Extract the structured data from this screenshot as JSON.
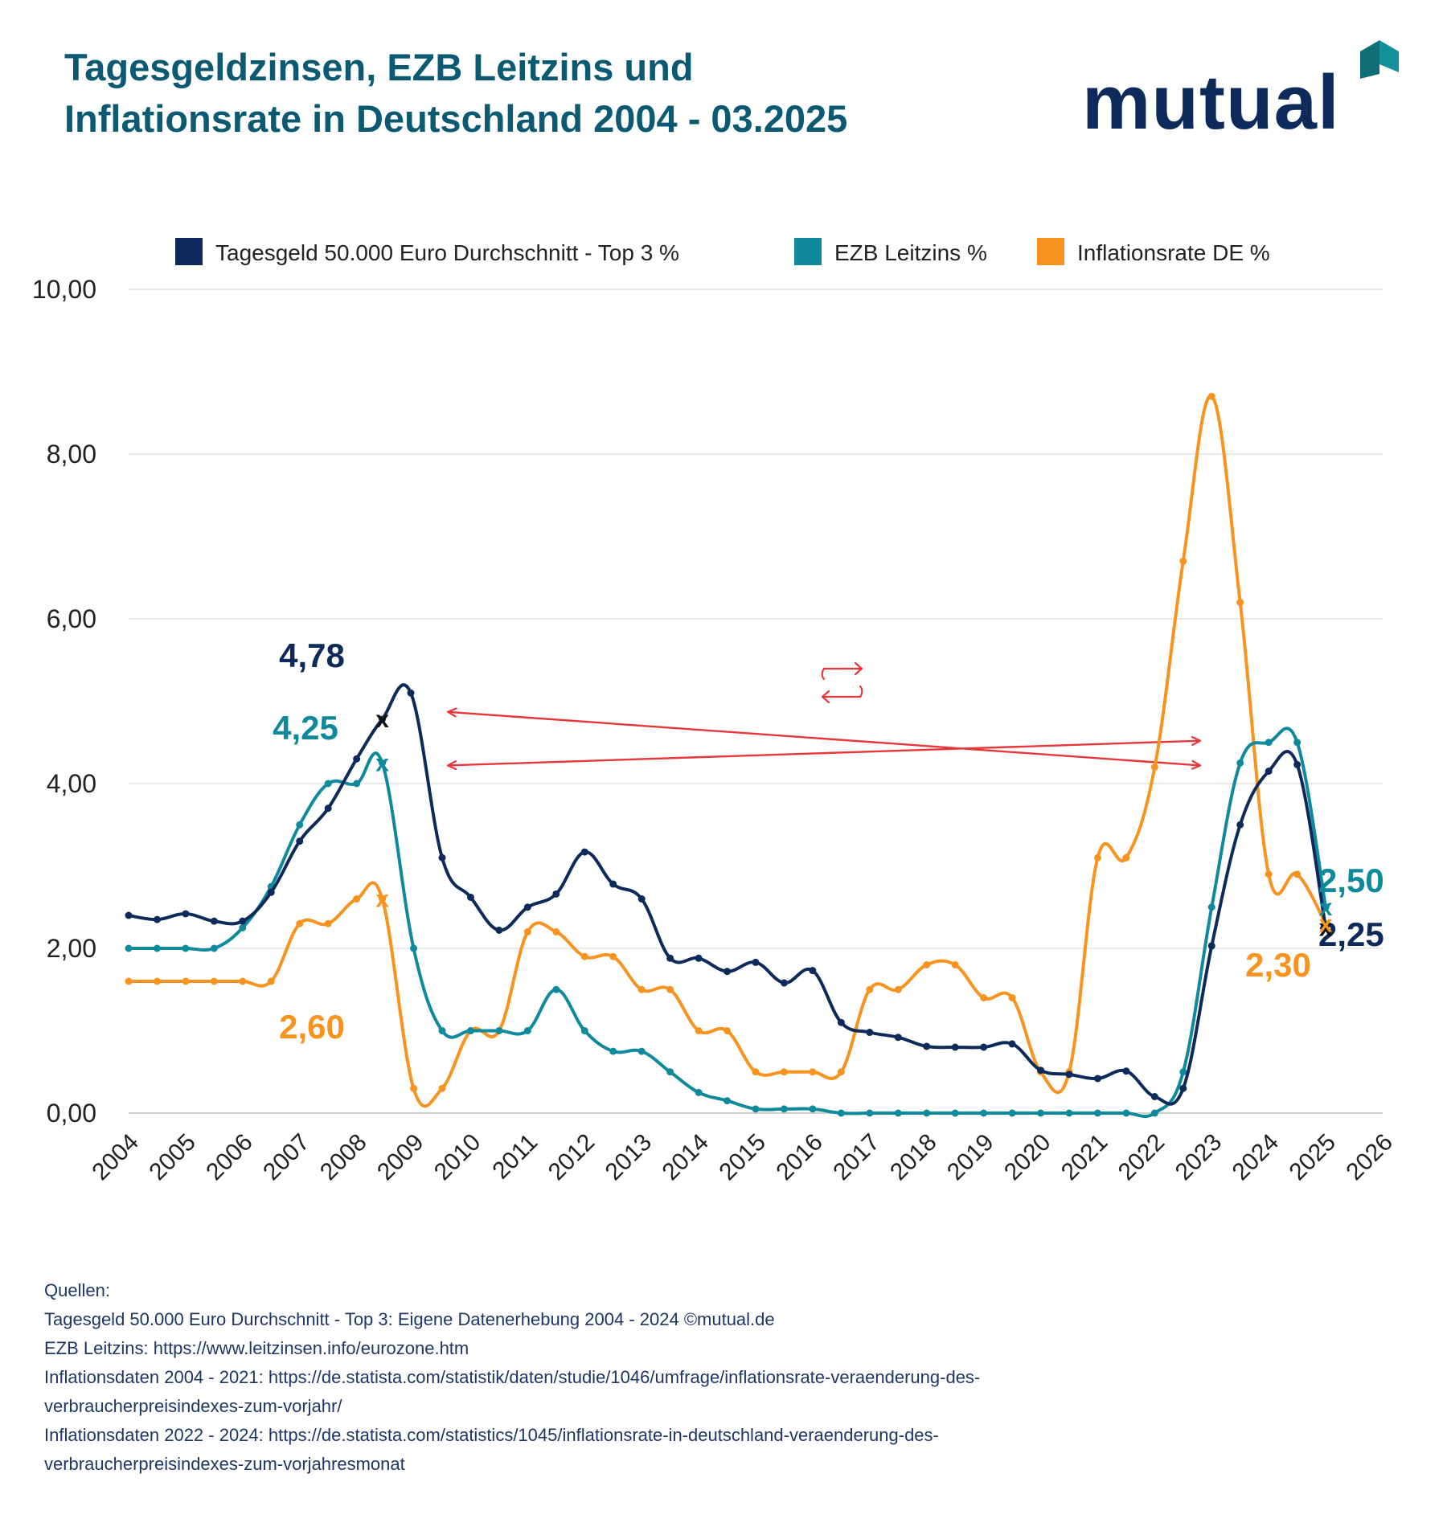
{
  "header": {
    "title_line1": "Tagesgeldzinsen, EZB Leitzins und",
    "title_line2": "Inflationsrate in Deutschland 2004 - 03.2025"
  },
  "logo": {
    "text": "mutual",
    "icon": "roof-icon"
  },
  "colors": {
    "tagesgeld": "#0d2a5a",
    "ezb": "#0f8a9c",
    "inflation": "#f7931e",
    "arrow": "#e8373a",
    "grid": "#e3e3e3"
  },
  "chart_data": {
    "type": "line",
    "title": "Tagesgeldzinsen, EZB Leitzins und Inflationsrate in Deutschland 2004 - 03.2025",
    "ylim": [
      0,
      10
    ],
    "xlim": [
      2004,
      2026
    ],
    "y_ticks": [
      "0,00",
      "2,00",
      "4,00",
      "6,00",
      "8,00",
      "10,00"
    ],
    "x_ticks": [
      "2004",
      "2005",
      "2006",
      "2007",
      "2008",
      "2009",
      "2010",
      "2011",
      "2012",
      "2013",
      "2014",
      "2015",
      "2016",
      "2017",
      "2018",
      "2019",
      "2020",
      "2021",
      "2022",
      "2023",
      "2024",
      "2025",
      "2026"
    ],
    "grid": true,
    "legend_position": "top",
    "series": [
      {
        "name": "Tagesgeld 50.000 Euro Durchschnitt - Top 3 %",
        "color": "#0d2a5a",
        "points": [
          [
            2004,
            2.4
          ],
          [
            2004.5,
            2.35
          ],
          [
            2005,
            2.42
          ],
          [
            2005.5,
            2.33
          ],
          [
            2006,
            2.33
          ],
          [
            2006.5,
            2.68
          ],
          [
            2007,
            3.3
          ],
          [
            2007.5,
            3.7
          ],
          [
            2008,
            4.3
          ],
          [
            2008.45,
            4.78
          ],
          [
            2008.95,
            5.1
          ],
          [
            2009.5,
            3.1
          ],
          [
            2010,
            2.62
          ],
          [
            2010.5,
            2.22
          ],
          [
            2011,
            2.5
          ],
          [
            2011.5,
            2.66
          ],
          [
            2012,
            3.17
          ],
          [
            2012.5,
            2.78
          ],
          [
            2013,
            2.6
          ],
          [
            2013.5,
            1.88
          ],
          [
            2014,
            1.88
          ],
          [
            2014.5,
            1.72
          ],
          [
            2015,
            1.83
          ],
          [
            2015.5,
            1.58
          ],
          [
            2016,
            1.73
          ],
          [
            2016.5,
            1.1
          ],
          [
            2017,
            0.98
          ],
          [
            2017.5,
            0.92
          ],
          [
            2018,
            0.81
          ],
          [
            2018.5,
            0.8
          ],
          [
            2019,
            0.8
          ],
          [
            2019.5,
            0.84
          ],
          [
            2020,
            0.52
          ],
          [
            2020.5,
            0.47
          ],
          [
            2021,
            0.42
          ],
          [
            2021.5,
            0.51
          ],
          [
            2022,
            0.2
          ],
          [
            2022.5,
            0.3
          ],
          [
            2023,
            2.03
          ],
          [
            2023.5,
            3.5
          ],
          [
            2024,
            4.15
          ],
          [
            2024.5,
            4.23
          ],
          [
            2025,
            2.25
          ]
        ],
        "end_marker": [
          2025,
          2.25
        ],
        "annotations": [
          {
            "x": 2008.45,
            "y": 4.78,
            "label": "4,78"
          },
          {
            "x": 2025,
            "y": 2.25,
            "label": "2,25"
          }
        ]
      },
      {
        "name": "EZB Leitzins %",
        "color": "#0f8a9c",
        "points": [
          [
            2004,
            2.0
          ],
          [
            2004.5,
            2.0
          ],
          [
            2005,
            2.0
          ],
          [
            2005.5,
            2.0
          ],
          [
            2006,
            2.25
          ],
          [
            2006.5,
            2.75
          ],
          [
            2007,
            3.5
          ],
          [
            2007.5,
            4.0
          ],
          [
            2008,
            4.0
          ],
          [
            2008.45,
            4.25
          ],
          [
            2009,
            2.0
          ],
          [
            2009.5,
            1.0
          ],
          [
            2010,
            1.0
          ],
          [
            2010.5,
            1.0
          ],
          [
            2011,
            1.0
          ],
          [
            2011.5,
            1.5
          ],
          [
            2012,
            1.0
          ],
          [
            2012.5,
            0.75
          ],
          [
            2013,
            0.75
          ],
          [
            2013.5,
            0.5
          ],
          [
            2014,
            0.25
          ],
          [
            2014.5,
            0.15
          ],
          [
            2015,
            0.05
          ],
          [
            2015.5,
            0.05
          ],
          [
            2016,
            0.05
          ],
          [
            2016.5,
            0.0
          ],
          [
            2017,
            0.0
          ],
          [
            2017.5,
            0.0
          ],
          [
            2018,
            0.0
          ],
          [
            2018.5,
            0.0
          ],
          [
            2019,
            0.0
          ],
          [
            2019.5,
            0.0
          ],
          [
            2020,
            0.0
          ],
          [
            2020.5,
            0.0
          ],
          [
            2021,
            0.0
          ],
          [
            2021.5,
            0.0
          ],
          [
            2022,
            0.0
          ],
          [
            2022.5,
            0.5
          ],
          [
            2023,
            2.5
          ],
          [
            2023.5,
            4.25
          ],
          [
            2024,
            4.5
          ],
          [
            2024.5,
            4.5
          ],
          [
            2025,
            2.5
          ]
        ],
        "end_marker": [
          2025,
          2.5
        ],
        "annotations": [
          {
            "x": 2008.45,
            "y": 4.25,
            "label": "4,25"
          },
          {
            "x": 2025,
            "y": 2.5,
            "label": "2,50"
          }
        ]
      },
      {
        "name": "Inflationsrate DE %",
        "color": "#f7931e",
        "points": [
          [
            2004,
            1.6
          ],
          [
            2004.5,
            1.6
          ],
          [
            2005,
            1.6
          ],
          [
            2005.5,
            1.6
          ],
          [
            2006,
            1.6
          ],
          [
            2006.5,
            1.6
          ],
          [
            2007,
            2.3
          ],
          [
            2007.5,
            2.3
          ],
          [
            2008,
            2.6
          ],
          [
            2008.45,
            2.6
          ],
          [
            2009,
            0.3
          ],
          [
            2009.5,
            0.3
          ],
          [
            2010,
            1.0
          ],
          [
            2010.5,
            1.0
          ],
          [
            2011,
            2.2
          ],
          [
            2011.5,
            2.2
          ],
          [
            2012,
            1.9
          ],
          [
            2012.5,
            1.9
          ],
          [
            2013,
            1.5
          ],
          [
            2013.5,
            1.5
          ],
          [
            2014,
            1.0
          ],
          [
            2014.5,
            1.0
          ],
          [
            2015,
            0.5
          ],
          [
            2015.5,
            0.5
          ],
          [
            2016,
            0.5
          ],
          [
            2016.5,
            0.5
          ],
          [
            2017,
            1.5
          ],
          [
            2017.5,
            1.5
          ],
          [
            2018,
            1.8
          ],
          [
            2018.5,
            1.8
          ],
          [
            2019,
            1.4
          ],
          [
            2019.5,
            1.4
          ],
          [
            2020,
            0.5
          ],
          [
            2020.5,
            0.5
          ],
          [
            2021,
            3.1
          ],
          [
            2021.5,
            3.1
          ],
          [
            2022,
            4.2
          ],
          [
            2022.5,
            6.7
          ],
          [
            2023,
            8.7
          ],
          [
            2023.5,
            6.2
          ],
          [
            2024,
            2.9
          ],
          [
            2024.5,
            2.9
          ],
          [
            2025,
            2.3
          ]
        ],
        "end_marker": [
          2025,
          2.3
        ],
        "annotations": [
          {
            "x": 2008.45,
            "y": 2.6,
            "label": "2,60"
          },
          {
            "x": 2025,
            "y": 2.3,
            "label": "2,30"
          }
        ]
      }
    ],
    "comparison_arrows": [
      {
        "from": [
          2009.6,
          4.87
        ],
        "to": [
          2022.8,
          4.22
        ],
        "meaning": "2008 Tagesgeld level vs 2023"
      },
      {
        "from": [
          2022.8,
          4.52
        ],
        "to": [
          2009.6,
          4.22
        ],
        "meaning": "2023 level vs 2008 EZB"
      }
    ],
    "swap_icon": "swap-arrows-icon"
  },
  "sources": {
    "heading": "Quellen:",
    "lines": [
      "Tagesgeld 50.000 Euro Durchschnitt - Top 3: Eigene Datenerhebung 2004 - 2024 ©mutual.de",
      "EZB Leitzins: https://www.leitzinsen.info/eurozone.htm",
      "Inflationsdaten 2004 - 2021: https://de.statista.com/statistik/daten/studie/1046/umfrage/inflationsrate-veraenderung-des-",
      "verbraucherpreisindexes-zum-vorjahr/",
      "Inflationsdaten 2022 - 2024: https://de.statista.com/statistics/1045/inflationsrate-in-deutschland-veraenderung-des-",
      "verbraucherpreisindexes-zum-vorjahresmonat"
    ]
  }
}
